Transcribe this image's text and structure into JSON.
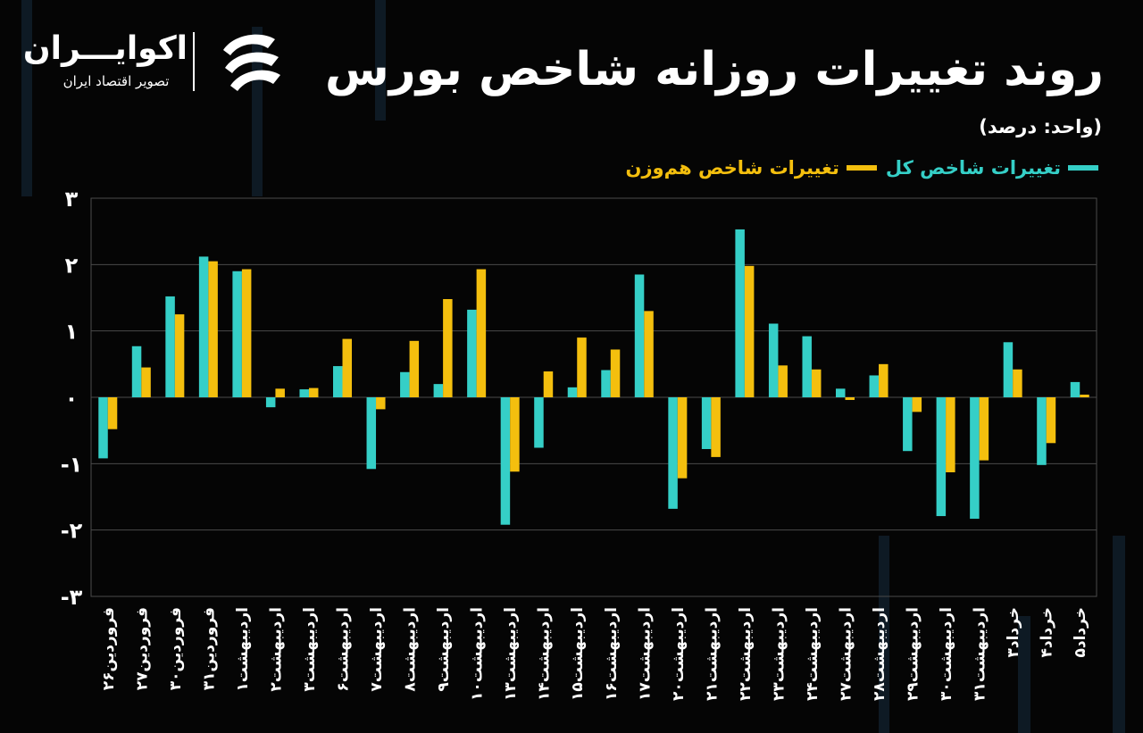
{
  "header": {
    "title": "روند تغییرات روزانه شاخص بورس",
    "unit": "(واحد: درصد)"
  },
  "logo": {
    "name": "اکوایـــران",
    "tagline": "تصویر اقتصاد ایران"
  },
  "colors": {
    "background": "#050505",
    "series_total": "#35cfc7",
    "series_equal": "#f4bf0e",
    "grid": "#4a4a4a"
  },
  "chart_data": {
    "type": "bar",
    "categories": [
      "۲۶فروردین",
      "۲۷فروردین",
      "۳۰فروردین",
      "۳۱فروردین",
      "۱اردیبهشت",
      "۲اردیبهشت",
      "۳اردیبهشت",
      "۶اردیبهشت",
      "۷اردیبهشت",
      "۸اردیبهشت",
      "۹اردیبهشت",
      "۱۰اردیبهشت",
      "۱۳اردیبهشت",
      "۱۴اردیبهشت",
      "۱۵اردیبهشت",
      "۱۶اردیبهشت",
      "۱۷اردیبهشت",
      "۲۰اردیبهشت",
      "۲۱اردیبهشت",
      "۲۲اردیبهشت",
      "۲۳اردیبهشت",
      "۲۴اردیبهشت",
      "۲۷اردیبهشت",
      "۲۸اردیبهشت",
      "۲۹اردیبهشت",
      "۳۰اردیبهشت",
      "۳۱اردیبهشت",
      "۳خرداد",
      "۴خرداد",
      "۵خرداد"
    ],
    "series": [
      {
        "name": "تغییرات شاخص کل",
        "values": [
          -0.92,
          0.77,
          1.52,
          2.12,
          1.9,
          -0.15,
          0.12,
          0.47,
          -1.08,
          0.38,
          0.2,
          1.32,
          -1.92,
          -0.76,
          0.15,
          0.41,
          1.85,
          -1.68,
          -0.78,
          2.53,
          1.11,
          0.92,
          0.13,
          0.33,
          -0.81,
          -1.79,
          -1.83,
          0.83,
          -1.02,
          0.23
        ]
      },
      {
        "name": "تغییرات شاخص هم‌وزن",
        "values": [
          -0.48,
          0.45,
          1.25,
          2.05,
          1.93,
          0.13,
          0.14,
          0.88,
          -0.18,
          0.85,
          1.48,
          1.93,
          -1.12,
          0.39,
          0.9,
          0.72,
          1.3,
          -1.22,
          -0.9,
          1.98,
          0.48,
          0.42,
          -0.04,
          0.5,
          -0.22,
          -1.13,
          -0.95,
          0.42,
          -0.69,
          0.04
        ]
      }
    ],
    "ylim": [
      -3,
      3
    ],
    "y_ticks": [
      "۳",
      "۲",
      "۱",
      "۰",
      "-۱",
      "-۲",
      "-۳"
    ],
    "grid": true,
    "legend_position": "top-right"
  }
}
